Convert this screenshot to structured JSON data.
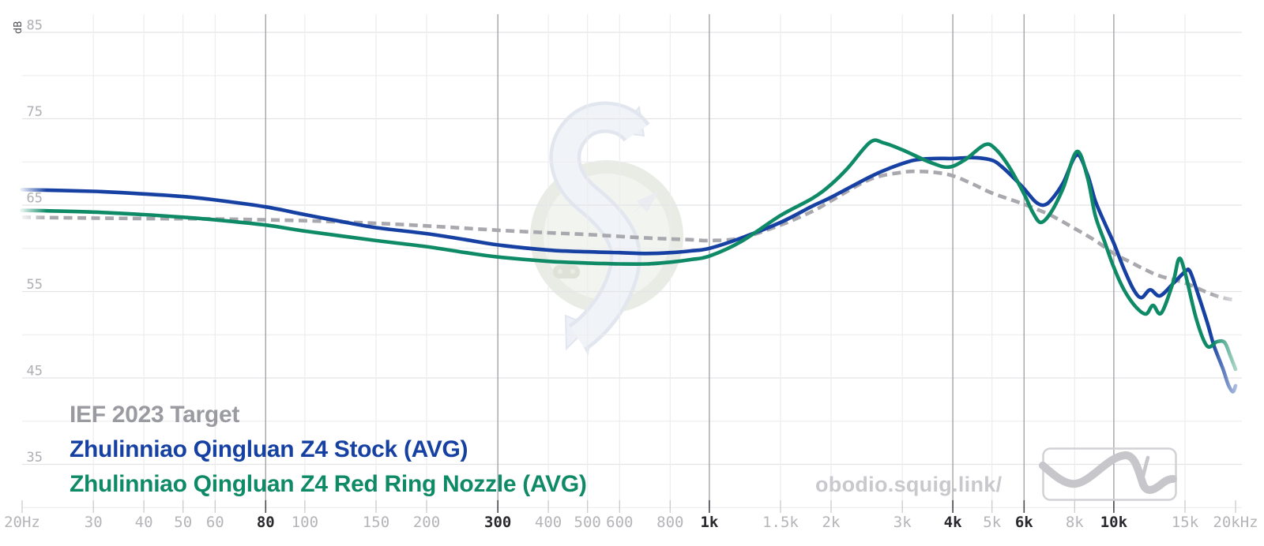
{
  "watermark": {
    "site_text": "obodio.squig.link/"
  },
  "colors": {
    "target_curve": "#a8a8ae",
    "stock_curve": "#1641a3",
    "nozzle_curve": "#0f8a66",
    "legend_target_text": "#9a9aa1",
    "axis_label_minor": "#b4b4b9",
    "axis_label_major": "#28282d",
    "grid_minor": "#ededef",
    "grid_labeled_row": "#e4e4e7",
    "grid_major_col": "#a4a4a9",
    "watermark_text": "#c8c8cd",
    "logo_box_stroke": "#d2d2d6",
    "logo_squiggle": "#c6c6cb"
  },
  "chart_data": {
    "type": "line",
    "title": "",
    "grid": true,
    "legend_position": "bottom-left",
    "x_axis": {
      "scale": "log",
      "unit": "Hz",
      "min": 20,
      "max": 20000,
      "ticks": [
        {
          "f": 20,
          "label": "20Hz",
          "major": false
        },
        {
          "f": 30,
          "label": "30",
          "major": false
        },
        {
          "f": 40,
          "label": "40",
          "major": false
        },
        {
          "f": 50,
          "label": "50",
          "major": false
        },
        {
          "f": 60,
          "label": "60",
          "major": false
        },
        {
          "f": 80,
          "label": "80",
          "major": true
        },
        {
          "f": 100,
          "label": "100",
          "major": false
        },
        {
          "f": 150,
          "label": "150",
          "major": false
        },
        {
          "f": 200,
          "label": "200",
          "major": false
        },
        {
          "f": 300,
          "label": "300",
          "major": true
        },
        {
          "f": 400,
          "label": "400",
          "major": false
        },
        {
          "f": 500,
          "label": "500",
          "major": false
        },
        {
          "f": 600,
          "label": "600",
          "major": false
        },
        {
          "f": 800,
          "label": "800",
          "major": false
        },
        {
          "f": 1000,
          "label": "1k",
          "major": true
        },
        {
          "f": 1500,
          "label": "1.5k",
          "major": false
        },
        {
          "f": 2000,
          "label": "2k",
          "major": false
        },
        {
          "f": 3000,
          "label": "3k",
          "major": false
        },
        {
          "f": 4000,
          "label": "4k",
          "major": true
        },
        {
          "f": 5000,
          "label": "5k",
          "major": false
        },
        {
          "f": 6000,
          "label": "6k",
          "major": true
        },
        {
          "f": 8000,
          "label": "8k",
          "major": false
        },
        {
          "f": 10000,
          "label": "10k",
          "major": true
        },
        {
          "f": 15000,
          "label": "15k",
          "major": false
        },
        {
          "f": 20000,
          "label": "20kHz",
          "major": false
        }
      ]
    },
    "y_axis": {
      "unit": "dB",
      "min": 30,
      "max": 85,
      "grid_step": 5,
      "labeled_ticks": [
        85,
        75,
        65,
        55,
        45,
        35
      ]
    },
    "series": [
      {
        "name": "IEF 2023 Target",
        "color": "#a8a8ae",
        "legend_color": "#9a9aa1",
        "style": "dashed",
        "points": [
          [
            20,
            63.6
          ],
          [
            30,
            63.5
          ],
          [
            40,
            63.45
          ],
          [
            60,
            63.4
          ],
          [
            80,
            63.3
          ],
          [
            100,
            63.2
          ],
          [
            150,
            62.9
          ],
          [
            200,
            62.6
          ],
          [
            300,
            62.1
          ],
          [
            400,
            61.8
          ],
          [
            500,
            61.6
          ],
          [
            700,
            61.2
          ],
          [
            900,
            61.0
          ],
          [
            1000,
            60.9
          ],
          [
            1200,
            61.2
          ],
          [
            1500,
            62.7
          ],
          [
            1800,
            64.3
          ],
          [
            2000,
            65.5
          ],
          [
            2500,
            68.0
          ],
          [
            3000,
            68.8
          ],
          [
            3300,
            68.9
          ],
          [
            3600,
            68.8
          ],
          [
            4000,
            68.4
          ],
          [
            4500,
            67.4
          ],
          [
            5000,
            66.4
          ],
          [
            6000,
            65.1
          ],
          [
            7000,
            63.8
          ],
          [
            8000,
            62.3
          ],
          [
            9000,
            60.9
          ],
          [
            10000,
            59.4
          ],
          [
            11000,
            58.4
          ],
          [
            12000,
            57.5
          ],
          [
            13000,
            56.8
          ],
          [
            15000,
            56.0
          ],
          [
            17000,
            54.9
          ],
          [
            18500,
            54.3
          ],
          [
            20000,
            54.0
          ]
        ]
      },
      {
        "name": "Zhulinniao Qingluan Z4 Stock (AVG)",
        "color": "#1641a3",
        "legend_color": "#1641a3",
        "style": "solid",
        "points": [
          [
            20,
            66.8
          ],
          [
            30,
            66.6
          ],
          [
            40,
            66.3
          ],
          [
            50,
            66.0
          ],
          [
            60,
            65.6
          ],
          [
            80,
            64.8
          ],
          [
            100,
            63.9
          ],
          [
            120,
            63.2
          ],
          [
            150,
            62.4
          ],
          [
            200,
            61.7
          ],
          [
            250,
            61.0
          ],
          [
            300,
            60.4
          ],
          [
            400,
            59.8
          ],
          [
            500,
            59.6
          ],
          [
            600,
            59.5
          ],
          [
            700,
            59.4
          ],
          [
            800,
            59.5
          ],
          [
            900,
            59.7
          ],
          [
            1000,
            60.0
          ],
          [
            1200,
            61.2
          ],
          [
            1500,
            63.0
          ],
          [
            1800,
            64.9
          ],
          [
            2000,
            65.9
          ],
          [
            2500,
            68.3
          ],
          [
            2800,
            69.3
          ],
          [
            3200,
            70.2
          ],
          [
            3600,
            70.4
          ],
          [
            4000,
            70.4
          ],
          [
            4500,
            70.5
          ],
          [
            5000,
            70.2
          ],
          [
            5300,
            69.4
          ],
          [
            5700,
            68.0
          ],
          [
            6000,
            66.9
          ],
          [
            6400,
            65.4
          ],
          [
            6700,
            65.0
          ],
          [
            7000,
            65.6
          ],
          [
            7500,
            67.6
          ],
          [
            8100,
            70.8
          ],
          [
            8600,
            68.6
          ],
          [
            9000,
            65.5
          ],
          [
            9500,
            62.9
          ],
          [
            10000,
            60.6
          ],
          [
            10600,
            57.6
          ],
          [
            11200,
            55.2
          ],
          [
            11700,
            54.3
          ],
          [
            12300,
            55.2
          ],
          [
            13000,
            54.5
          ],
          [
            14000,
            55.9
          ],
          [
            15000,
            57.3
          ],
          [
            15400,
            57.4
          ],
          [
            16000,
            55.3
          ],
          [
            17000,
            51.5
          ],
          [
            17700,
            48.7
          ],
          [
            18600,
            46.1
          ],
          [
            19200,
            44.2
          ],
          [
            19700,
            43.4
          ],
          [
            20000,
            44.1
          ]
        ]
      },
      {
        "name": "Zhulinniao Qingluan Z4 Red Ring Nozzle (AVG)",
        "color": "#0f8a66",
        "legend_color": "#0f8a66",
        "style": "solid",
        "points": [
          [
            20,
            64.4
          ],
          [
            30,
            64.2
          ],
          [
            40,
            63.9
          ],
          [
            50,
            63.6
          ],
          [
            60,
            63.3
          ],
          [
            80,
            62.7
          ],
          [
            100,
            62.0
          ],
          [
            150,
            60.9
          ],
          [
            200,
            60.2
          ],
          [
            250,
            59.5
          ],
          [
            300,
            59.0
          ],
          [
            400,
            58.5
          ],
          [
            500,
            58.3
          ],
          [
            600,
            58.2
          ],
          [
            700,
            58.2
          ],
          [
            800,
            58.4
          ],
          [
            900,
            58.7
          ],
          [
            1000,
            59.1
          ],
          [
            1200,
            60.8
          ],
          [
            1500,
            63.8
          ],
          [
            1800,
            65.8
          ],
          [
            2000,
            67.4
          ],
          [
            2200,
            69.3
          ],
          [
            2500,
            72.3
          ],
          [
            2700,
            72.2
          ],
          [
            3000,
            71.4
          ],
          [
            3500,
            70.0
          ],
          [
            3900,
            69.4
          ],
          [
            4300,
            70.3
          ],
          [
            4800,
            72.0
          ],
          [
            5100,
            71.5
          ],
          [
            5500,
            69.5
          ],
          [
            6000,
            66.3
          ],
          [
            6300,
            64.2
          ],
          [
            6600,
            63.0
          ],
          [
            7000,
            64.2
          ],
          [
            7500,
            67.0
          ],
          [
            8100,
            71.2
          ],
          [
            8600,
            68.3
          ],
          [
            9000,
            63.8
          ],
          [
            9500,
            60.7
          ],
          [
            10000,
            57.8
          ],
          [
            10600,
            55.2
          ],
          [
            11300,
            53.3
          ],
          [
            12000,
            52.4
          ],
          [
            12500,
            53.4
          ],
          [
            13100,
            52.5
          ],
          [
            14000,
            56.0
          ],
          [
            14500,
            58.8
          ],
          [
            15000,
            57.2
          ],
          [
            16000,
            51.8
          ],
          [
            17000,
            48.7
          ],
          [
            18000,
            49.2
          ],
          [
            18800,
            49.1
          ],
          [
            19400,
            47.6
          ],
          [
            20000,
            46.0
          ]
        ]
      }
    ]
  }
}
